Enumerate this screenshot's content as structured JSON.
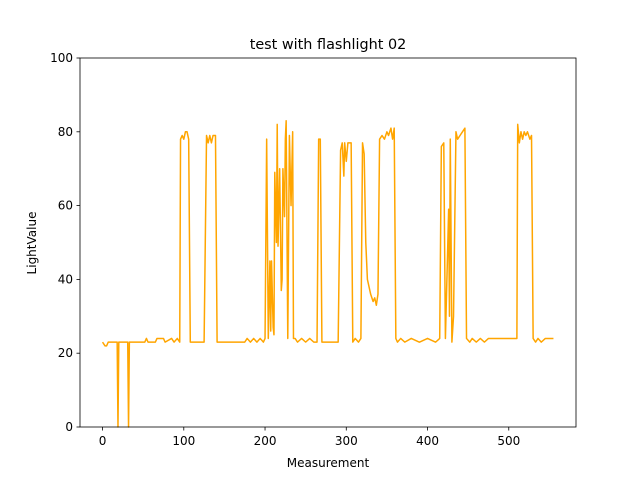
{
  "chart_data": {
    "type": "line",
    "title": "test with flashlight 02",
    "xlabel": "Measurement",
    "ylabel": "LightValue",
    "color": "#ffa500",
    "x": [
      0,
      3,
      5,
      7,
      18,
      19,
      20,
      31,
      32,
      33,
      52,
      54,
      56,
      65,
      67,
      75,
      77,
      85,
      88,
      92,
      95,
      96,
      98,
      100,
      102,
      104,
      106,
      108,
      125,
      128,
      130,
      132,
      134,
      136,
      139,
      141,
      175,
      178,
      182,
      186,
      190,
      194,
      198,
      200,
      202,
      204,
      206,
      207,
      208,
      210,
      211,
      212,
      214,
      215,
      216,
      218,
      220,
      221,
      222,
      224,
      225,
      226,
      228,
      230,
      232,
      234,
      235,
      237,
      240,
      245,
      250,
      255,
      260,
      264,
      266,
      268,
      270,
      290,
      293,
      295,
      297,
      298,
      300,
      302,
      304,
      306,
      308,
      311,
      315,
      318,
      320,
      322,
      324,
      326,
      330,
      333,
      335,
      337,
      339,
      341,
      344,
      347,
      350,
      352,
      355,
      357,
      359,
      361,
      363,
      367,
      372,
      380,
      390,
      400,
      410,
      415,
      417,
      420,
      422,
      425,
      426,
      427,
      428,
      430,
      432,
      435,
      437,
      440,
      443,
      446,
      448,
      452,
      455,
      460,
      465,
      470,
      475,
      510,
      511,
      513,
      515,
      517,
      519,
      521,
      523,
      526,
      528,
      530,
      533,
      536,
      540,
      545,
      550,
      555
    ],
    "values": [
      23,
      22,
      22,
      23,
      23,
      0,
      23,
      23,
      0,
      23,
      23,
      24,
      23,
      23,
      24,
      24,
      23,
      24,
      23,
      24,
      23,
      78,
      79,
      78,
      80,
      80,
      78,
      23,
      23,
      79,
      77,
      79,
      77,
      79,
      79,
      23,
      23,
      24,
      23,
      24,
      23,
      24,
      23,
      24,
      78,
      24,
      45,
      26,
      45,
      27,
      25,
      69,
      50,
      82,
      49,
      70,
      37,
      40,
      70,
      57,
      78,
      83,
      24,
      79,
      60,
      80,
      24,
      24,
      23,
      24,
      23,
      24,
      23,
      23,
      78,
      78,
      23,
      23,
      75,
      77,
      68,
      77,
      72,
      77,
      77,
      77,
      23,
      24,
      23,
      24,
      77,
      74,
      50,
      40,
      36,
      34,
      35,
      33,
      36,
      78,
      79,
      78,
      80,
      79,
      81,
      78,
      81,
      24,
      23,
      24,
      23,
      24,
      23,
      24,
      23,
      24,
      76,
      77,
      24,
      50,
      59,
      30,
      78,
      23,
      30,
      80,
      78,
      79,
      80,
      81,
      24,
      23,
      24,
      23,
      24,
      23,
      24,
      24,
      82,
      77,
      80,
      78,
      80,
      79,
      80,
      78,
      79,
      24,
      23,
      24,
      23,
      24,
      24,
      24
    ],
    "xlim": [
      -27.75,
      582.75
    ],
    "xticks": [
      0,
      100,
      200,
      300,
      400,
      500
    ],
    "ylim": [
      0,
      100
    ],
    "yticks": [
      0,
      20,
      40,
      60,
      80,
      100
    ]
  }
}
